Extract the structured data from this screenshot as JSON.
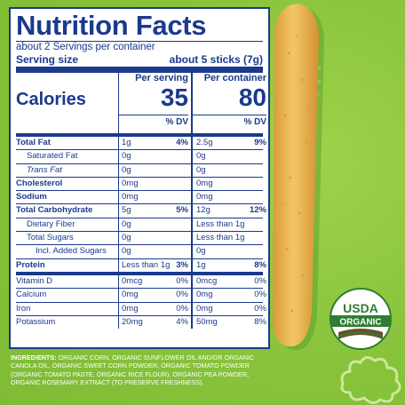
{
  "panel": {
    "title": "Nutrition Facts",
    "servings_per_container": "about 2 Servings per container",
    "serving_size_label": "Serving size",
    "serving_size_value": "about 5 sticks (7g)",
    "calories_label": "Calories",
    "per_serving_label": "Per serving",
    "per_container_label": "Per container",
    "calories_per_serving": "35",
    "calories_per_container": "80",
    "dv_label": "% DV",
    "rows": [
      {
        "name": "Total Fat",
        "ps": "1g",
        "ps_dv": "4%",
        "pc": "2.5g",
        "pc_dv": "9%"
      },
      {
        "name": "Saturated Fat",
        "ps": "0g",
        "ps_dv": "",
        "pc": "0g",
        "pc_dv": ""
      },
      {
        "name": "Trans Fat",
        "ps": "0g",
        "ps_dv": "",
        "pc": "0g",
        "pc_dv": ""
      },
      {
        "name": "Cholesterol",
        "ps": "0mg",
        "ps_dv": "",
        "pc": "0mg",
        "pc_dv": ""
      },
      {
        "name": "Sodium",
        "ps": "0mg",
        "ps_dv": "",
        "pc": "0mg",
        "pc_dv": ""
      },
      {
        "name": "Total Carbohydrate",
        "ps": "5g",
        "ps_dv": "5%",
        "pc": "12g",
        "pc_dv": "12%"
      },
      {
        "name": "Dietary Fiber",
        "ps": "0g",
        "ps_dv": "",
        "pc": "Less than 1g",
        "pc_dv": ""
      },
      {
        "name": "Total Sugars",
        "ps": "0g",
        "ps_dv": "",
        "pc": "Less than 1g",
        "pc_dv": ""
      },
      {
        "name": "Incl. Added Sugars",
        "ps": "0g",
        "ps_dv": "",
        "pc": "0g",
        "pc_dv": ""
      },
      {
        "name": "Protein",
        "ps": "Less than 1g",
        "ps_dv": "3%",
        "pc": "1g",
        "pc_dv": "8%"
      },
      {
        "name": "Vitamin D",
        "ps": "0mcg",
        "ps_dv": "0%",
        "pc": "0mcg",
        "pc_dv": "0%"
      },
      {
        "name": "Calcium",
        "ps": "0mg",
        "ps_dv": "0%",
        "pc": "0mg",
        "pc_dv": "0%"
      },
      {
        "name": "Iron",
        "ps": "0mg",
        "ps_dv": "0%",
        "pc": "0mg",
        "pc_dv": "0%"
      },
      {
        "name": "Potassium",
        "ps": "20mg",
        "ps_dv": "4%",
        "pc": "50mg",
        "pc_dv": "8%"
      }
    ]
  },
  "ingredients": {
    "label": "INGREDIENTS:",
    "text": "ORGANIC CORN, ORGANIC SUNFLOWER OIL AND/OR ORGANIC CANOLA OIL, ORGANIC SWEET CORN POWDER, ORGANIC TOMATO POWDER (ORGANIC TOMATO PASTE, ORGANIC RICE FLOUR), ORGANIC PEA POWDER, ORGANIC ROSEMARY EXTRACT (TO PRESERVE FRESHNESS)."
  },
  "usda_seal": {
    "top_text": "USDA",
    "band_text": "ORGANIC"
  },
  "colors": {
    "background_green": "#8cc63f",
    "panel_navy": "#1b3a8c",
    "snack_orange": "#e8b04a",
    "seal_green": "#2e7d32"
  }
}
